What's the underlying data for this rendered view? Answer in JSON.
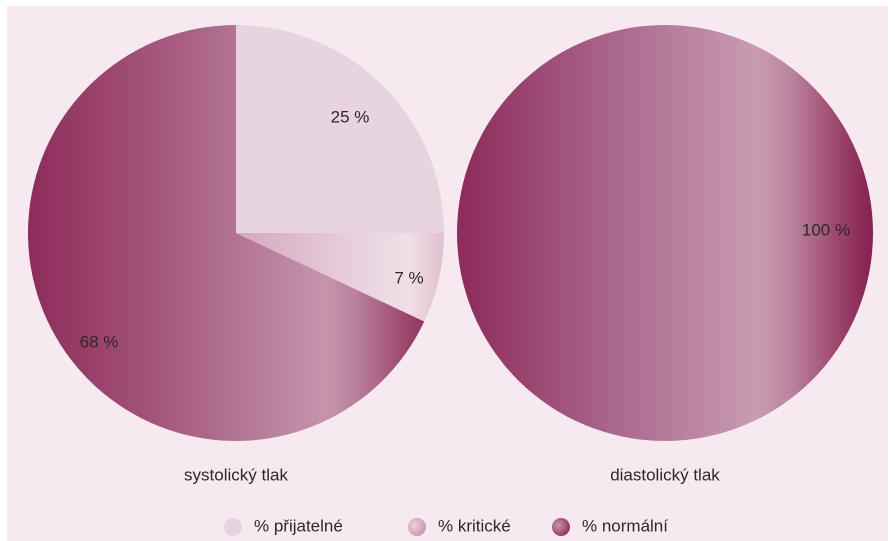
{
  "chart_data": [
    {
      "type": "pie",
      "caption": "systolický tlak",
      "slices": [
        {
          "category": "% přijatelné",
          "value": 25,
          "label": "25 %"
        },
        {
          "category": "% kritické",
          "value": 7,
          "label": "7 %"
        },
        {
          "category": "% normální",
          "value": 68,
          "label": "68 %"
        }
      ]
    },
    {
      "type": "pie",
      "caption": "diastolický tlak",
      "slices": [
        {
          "category": "% normální",
          "value": 100,
          "label": "100 %"
        }
      ]
    }
  ],
  "legend": {
    "placement": "bottom",
    "items": [
      {
        "label": "% přijatelné",
        "color": "#e8d4de"
      },
      {
        "label": "% kritické",
        "color": "#d9b2c4"
      },
      {
        "label": "% normální",
        "color": "#a34e74"
      }
    ]
  },
  "colors": {
    "background": "#f6eaf0",
    "prijatelne": "#e8d4de",
    "kriticke_light": "#ecd6e1",
    "kriticke_dark": "#c994ad",
    "normalni_dark": "#8e2b5a",
    "normalni_mid": "#b6809b",
    "normalni_light": "#cb9cb3"
  }
}
